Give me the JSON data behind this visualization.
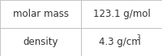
{
  "rows": [
    [
      "molar mass",
      "123.1 g/mol"
    ],
    [
      "density",
      "4.3 g/cm"
    ]
  ],
  "density_sup": "3",
  "background_color": "#ffffff",
  "border_color": "#bbbbbb",
  "text_color": "#333333",
  "font_size": 8.5,
  "sup_font_size": 5.5,
  "fig_width": 2.0,
  "fig_height": 0.7,
  "dpi": 100
}
